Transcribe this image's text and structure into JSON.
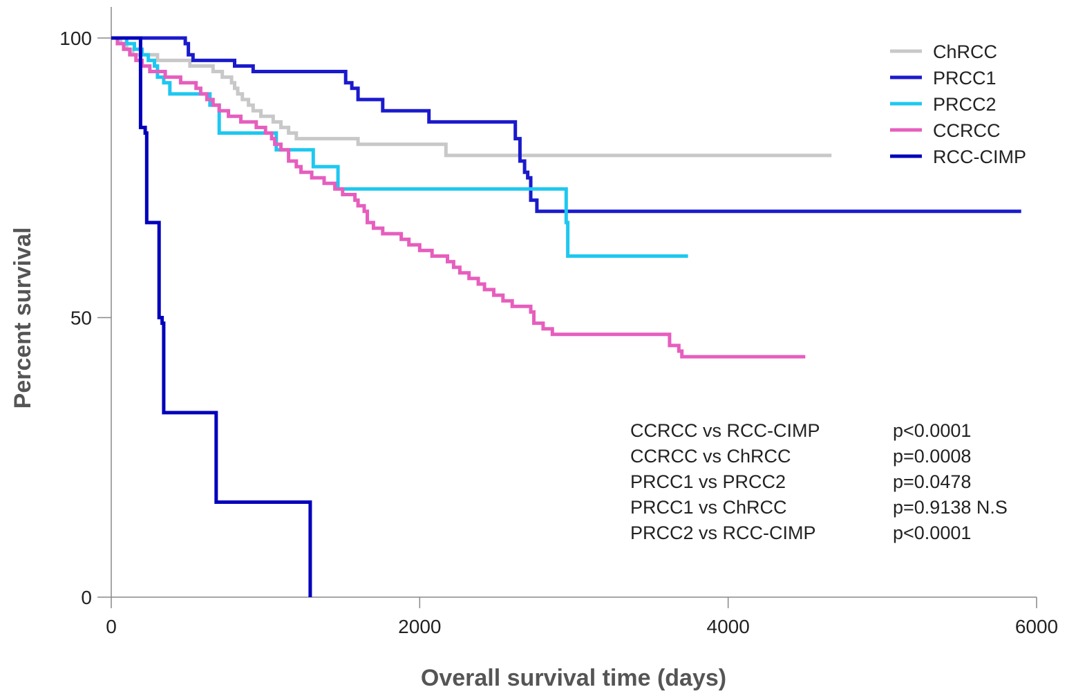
{
  "chart_data": {
    "type": "line",
    "step": true,
    "xlabel": "Overall survival time (days)",
    "ylabel": "Percent survival",
    "xlim": [
      0,
      6000
    ],
    "ylim": [
      0,
      100
    ],
    "xticks": [
      "0",
      "2000",
      "4000",
      "6000"
    ],
    "yticks": [
      "0",
      "50",
      "100"
    ],
    "grid": false,
    "legend_position": "top-right",
    "series": [
      {
        "name": "ChRCC",
        "color": "#c8c8c8",
        "points": [
          [
            0,
            100
          ],
          [
            60,
            99
          ],
          [
            100,
            98
          ],
          [
            140,
            97
          ],
          [
            200,
            97
          ],
          [
            300,
            96
          ],
          [
            450,
            96
          ],
          [
            510,
            95
          ],
          [
            600,
            95
          ],
          [
            660,
            94
          ],
          [
            720,
            93
          ],
          [
            780,
            92
          ],
          [
            800,
            91
          ],
          [
            820,
            90
          ],
          [
            850,
            89
          ],
          [
            890,
            88
          ],
          [
            920,
            87
          ],
          [
            970,
            86
          ],
          [
            1050,
            85
          ],
          [
            1100,
            84
          ],
          [
            1150,
            83
          ],
          [
            1200,
            82
          ],
          [
            1600,
            81
          ],
          [
            2000,
            81
          ],
          [
            2170,
            79
          ],
          [
            4670,
            79
          ]
        ]
      },
      {
        "name": "PRCC1",
        "color": "#1a1acc",
        "points": [
          [
            0,
            100
          ],
          [
            450,
            100
          ],
          [
            480,
            99
          ],
          [
            500,
            97
          ],
          [
            530,
            96
          ],
          [
            800,
            95
          ],
          [
            920,
            94
          ],
          [
            1500,
            94
          ],
          [
            1520,
            92
          ],
          [
            1560,
            91
          ],
          [
            1600,
            89
          ],
          [
            1750,
            89
          ],
          [
            1760,
            87
          ],
          [
            2050,
            87
          ],
          [
            2060,
            85
          ],
          [
            2600,
            85
          ],
          [
            2620,
            82
          ],
          [
            2650,
            78
          ],
          [
            2680,
            76
          ],
          [
            2700,
            75
          ],
          [
            2720,
            71
          ],
          [
            2750,
            71
          ],
          [
            2760,
            69
          ],
          [
            5900,
            69
          ]
        ]
      },
      {
        "name": "PRCC2",
        "color": "#1ec8f0",
        "points": [
          [
            0,
            100
          ],
          [
            100,
            99
          ],
          [
            150,
            98
          ],
          [
            200,
            97
          ],
          [
            240,
            96
          ],
          [
            280,
            95
          ],
          [
            300,
            93
          ],
          [
            340,
            92
          ],
          [
            380,
            90
          ],
          [
            600,
            90
          ],
          [
            640,
            88
          ],
          [
            700,
            83
          ],
          [
            1050,
            83
          ],
          [
            1070,
            80
          ],
          [
            1300,
            80
          ],
          [
            1310,
            77
          ],
          [
            1460,
            77
          ],
          [
            1470,
            73
          ],
          [
            2930,
            73
          ],
          [
            2950,
            67
          ],
          [
            2960,
            61
          ],
          [
            3740,
            61
          ]
        ]
      },
      {
        "name": "CCRCC",
        "color": "#e65ebe",
        "points": [
          [
            0,
            100
          ],
          [
            40,
            99
          ],
          [
            80,
            98
          ],
          [
            120,
            97
          ],
          [
            160,
            96
          ],
          [
            200,
            95
          ],
          [
            250,
            94
          ],
          [
            350,
            93
          ],
          [
            450,
            92
          ],
          [
            550,
            91
          ],
          [
            580,
            90
          ],
          [
            620,
            89
          ],
          [
            660,
            88
          ],
          [
            700,
            87
          ],
          [
            760,
            86
          ],
          [
            840,
            85
          ],
          [
            940,
            84
          ],
          [
            1000,
            83
          ],
          [
            1040,
            82
          ],
          [
            1060,
            81
          ],
          [
            1100,
            80
          ],
          [
            1150,
            78
          ],
          [
            1200,
            77
          ],
          [
            1230,
            76
          ],
          [
            1300,
            75
          ],
          [
            1380,
            74
          ],
          [
            1450,
            73
          ],
          [
            1500,
            72
          ],
          [
            1580,
            71
          ],
          [
            1600,
            70
          ],
          [
            1640,
            69
          ],
          [
            1660,
            67
          ],
          [
            1700,
            66
          ],
          [
            1760,
            65
          ],
          [
            1880,
            64
          ],
          [
            1930,
            63
          ],
          [
            2000,
            62
          ],
          [
            2080,
            61
          ],
          [
            2180,
            60
          ],
          [
            2220,
            59
          ],
          [
            2260,
            58
          ],
          [
            2320,
            57
          ],
          [
            2380,
            56
          ],
          [
            2420,
            55
          ],
          [
            2480,
            54
          ],
          [
            2540,
            53
          ],
          [
            2600,
            52
          ],
          [
            2720,
            51
          ],
          [
            2740,
            49
          ],
          [
            2800,
            48
          ],
          [
            2860,
            47
          ],
          [
            3600,
            47
          ],
          [
            3620,
            45
          ],
          [
            3680,
            44
          ],
          [
            3700,
            43
          ],
          [
            4500,
            43
          ]
        ]
      },
      {
        "name": "RCC-CIMP",
        "color": "#0000bb",
        "points": [
          [
            0,
            100
          ],
          [
            180,
            100
          ],
          [
            190,
            84
          ],
          [
            220,
            83
          ],
          [
            230,
            67
          ],
          [
            300,
            67
          ],
          [
            310,
            50
          ],
          [
            330,
            49
          ],
          [
            340,
            33
          ],
          [
            670,
            33
          ],
          [
            680,
            17
          ],
          [
            1280,
            17
          ],
          [
            1290,
            0
          ]
        ]
      }
    ],
    "annotations": [
      {
        "comparison": "CCRCC vs RCC-CIMP",
        "p": "p<0.0001"
      },
      {
        "comparison": "CCRCC vs ChRCC",
        "p": "p=0.0008"
      },
      {
        "comparison": "PRCC1 vs PRCC2",
        "p": "p=0.0478"
      },
      {
        "comparison": "PRCC1 vs ChRCC",
        "p": "p=0.9138 N.S"
      },
      {
        "comparison": "PRCC2 vs RCC-CIMP",
        "p": "p<0.0001"
      }
    ]
  }
}
